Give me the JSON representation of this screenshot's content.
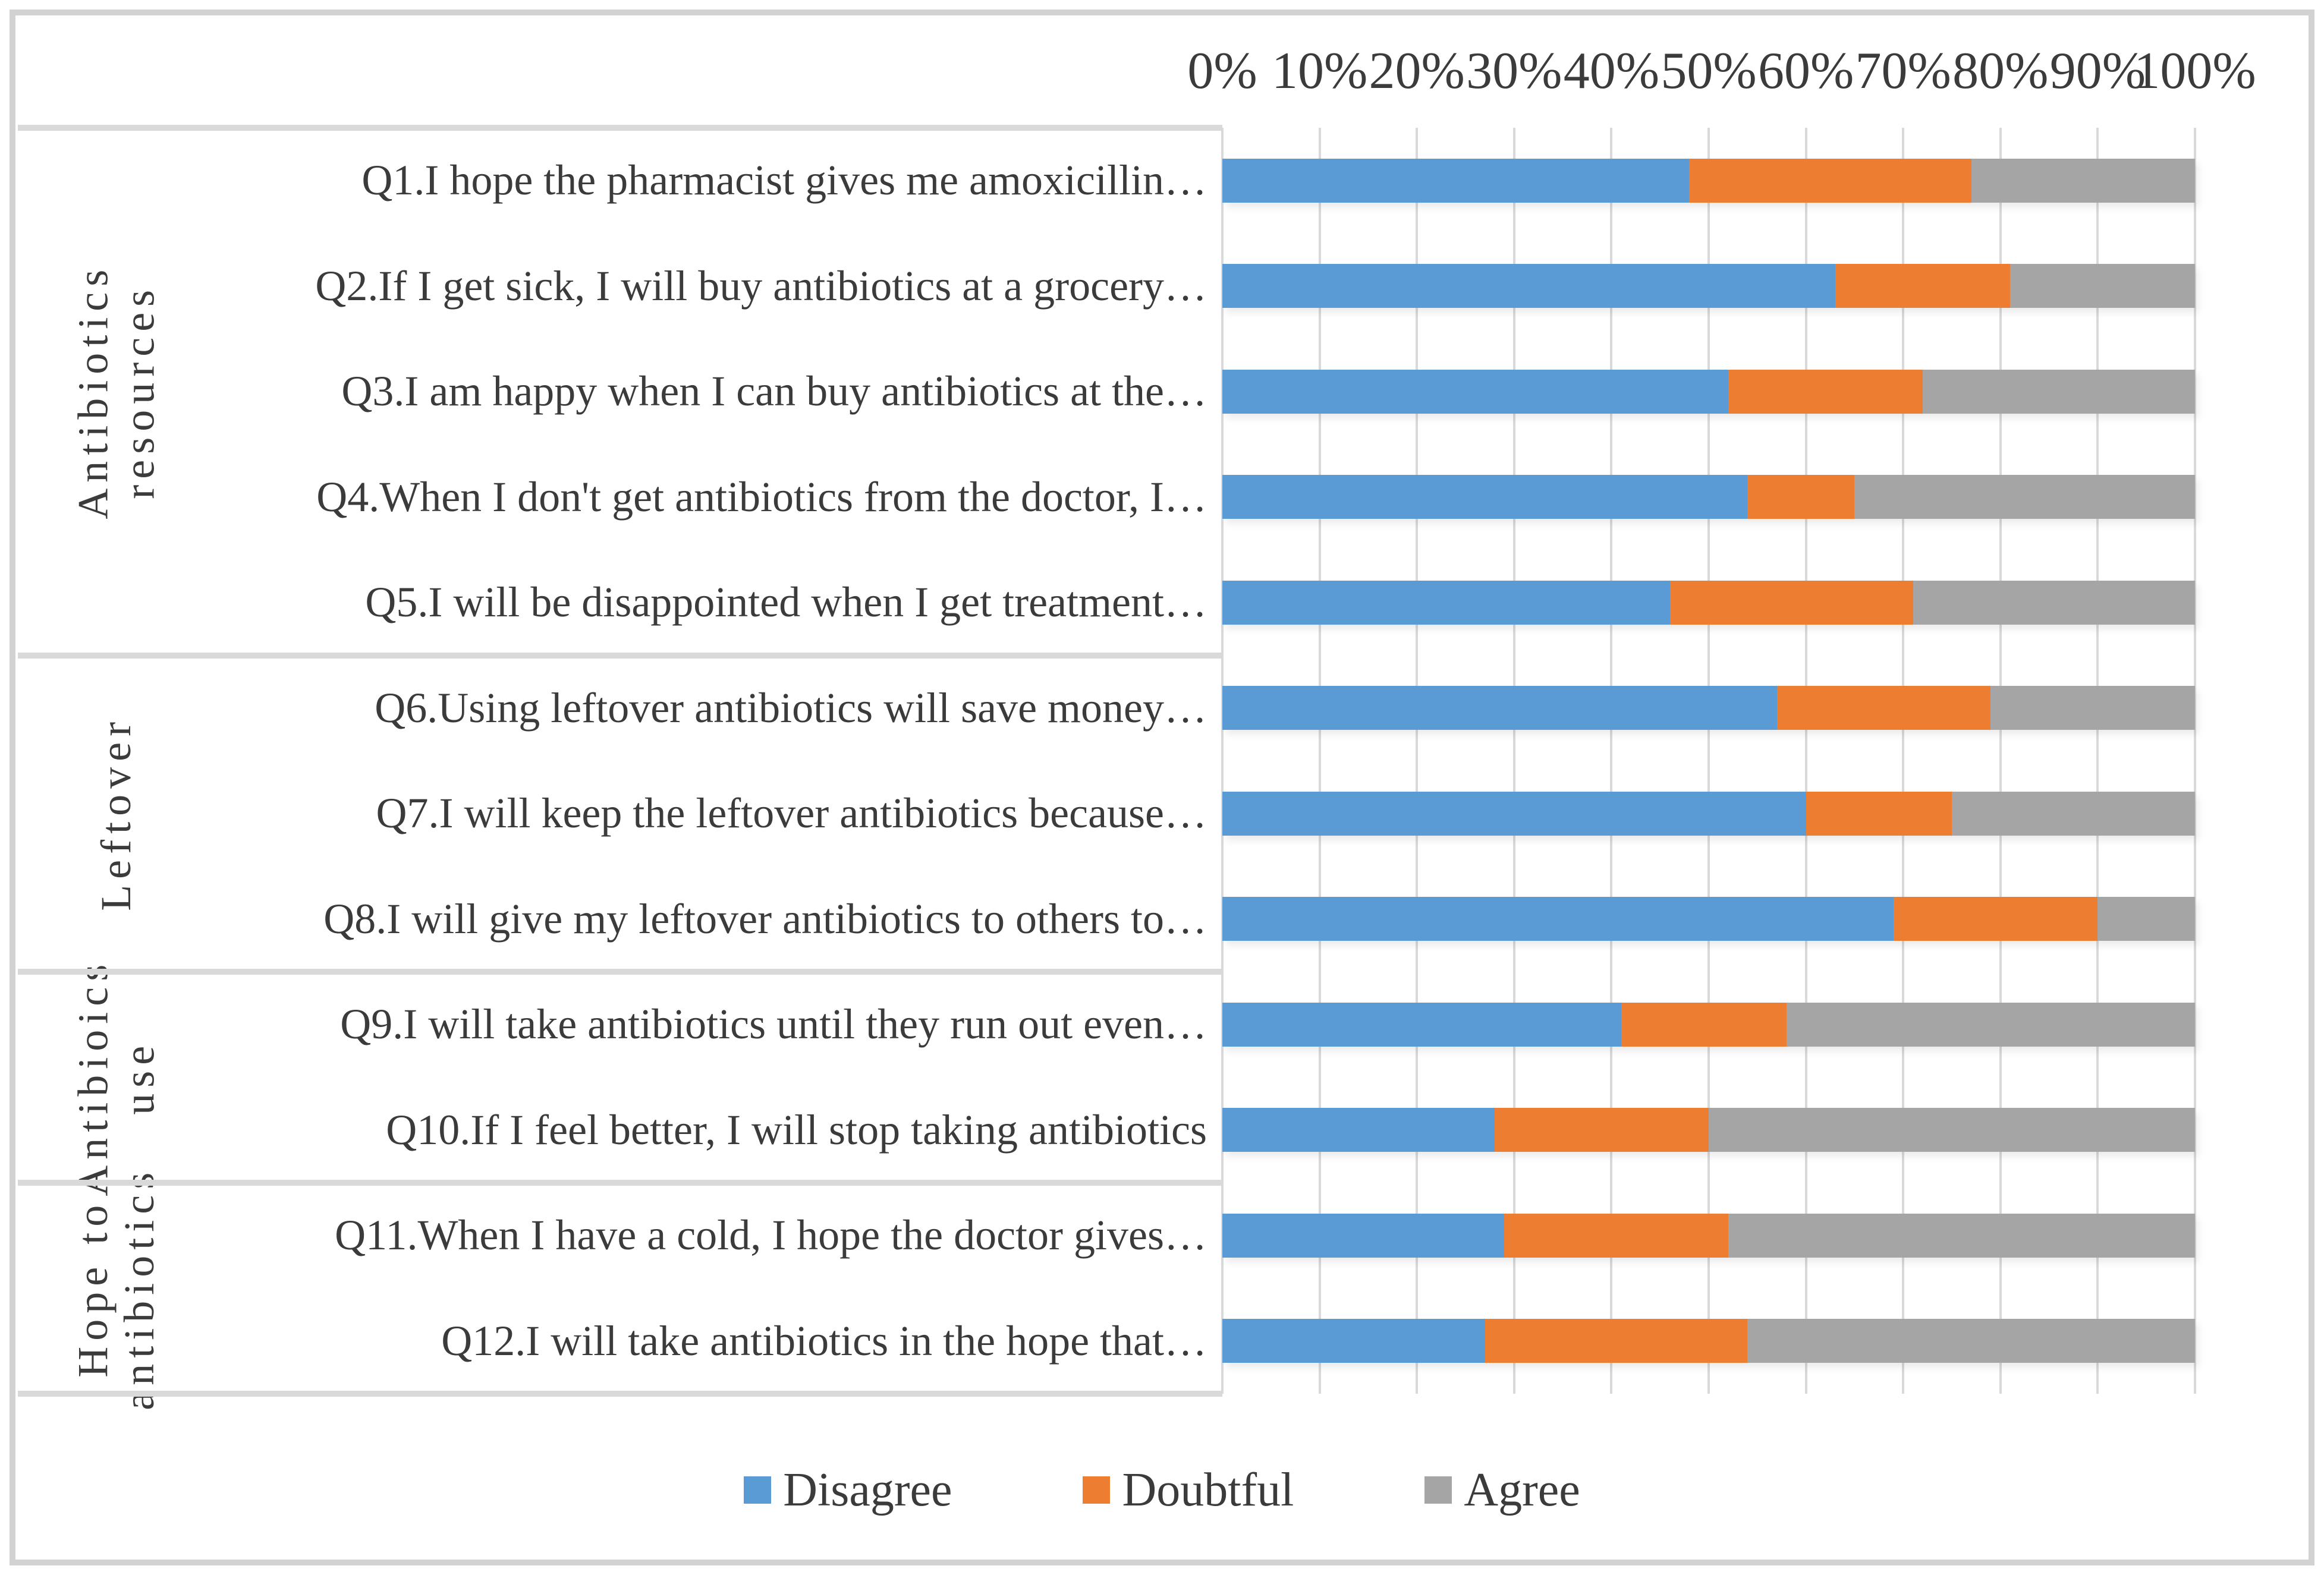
{
  "chart_data": {
    "type": "bar",
    "orientation": "horizontal",
    "stacked_percent": true,
    "title": "",
    "grid": true,
    "legend_position": "bottom",
    "x_axis": {
      "position": "top",
      "range": [
        0,
        100
      ],
      "tick_labels": [
        "0%",
        "10%",
        "20%",
        "30%",
        "40%",
        "50%",
        "60%",
        "70%",
        "80%",
        "90%",
        "100%"
      ]
    },
    "categories": [
      "Q1.I hope the pharmacist gives me amoxicillin…",
      "Q2.If I get sick, I will buy antibiotics at a grocery…",
      "Q3.I am happy when I can buy antibiotics at the…",
      "Q4.When I don't get antibiotics from the doctor, I…",
      "Q5.I will be disappointed when I get treatment…",
      "Q6.Using leftover antibiotics will save money…",
      "Q7.I will keep the leftover antibiotics because…",
      "Q8.I will give my leftover antibiotics to others to…",
      "Q9.I will take antibiotics until they run out even…",
      "Q10.If I feel better, I will stop taking antibiotics",
      "Q11.When I have a cold, I hope the doctor gives…",
      "Q12.I will take antibiotics in the hope that…"
    ],
    "groups": [
      {
        "label": "Antibiotics resources",
        "display": "Antibiotics resources",
        "rows": 5
      },
      {
        "label": "Leftover",
        "display": "Leftover",
        "rows": 3
      },
      {
        "label": "Antibioics use",
        "display": "Antibioics\nuse",
        "rows": 2
      },
      {
        "label": "Hope to antibiotics",
        "display": "Hope to\nantibiotics",
        "rows": 2
      }
    ],
    "series": [
      {
        "name": "Disagree",
        "color": "#5B9BD5",
        "values": [
          48,
          63,
          52,
          54,
          46,
          57,
          60,
          69,
          41,
          28,
          29,
          27
        ]
      },
      {
        "name": "Doubtful",
        "color": "#ED7D31",
        "values": [
          29,
          18,
          20,
          11,
          25,
          22,
          15,
          21,
          17,
          22,
          23,
          27
        ]
      },
      {
        "name": "Agree",
        "color": "#A5A5A5",
        "values": [
          23,
          19,
          28,
          35,
          29,
          21,
          25,
          10,
          42,
          50,
          48,
          46
        ]
      }
    ],
    "legend": [
      {
        "label": "Disagree",
        "color": "#5B9BD5"
      },
      {
        "label": "Doubtful",
        "color": "#ED7D31"
      },
      {
        "label": "Agree",
        "color": "#A5A5A5"
      }
    ],
    "colors": {
      "background": "#FFFFFF",
      "text": "#3B3B3B",
      "gridline": "#D9D9D9",
      "separator": "#D9D9D9",
      "figure_border": "#D2D2D2"
    }
  }
}
